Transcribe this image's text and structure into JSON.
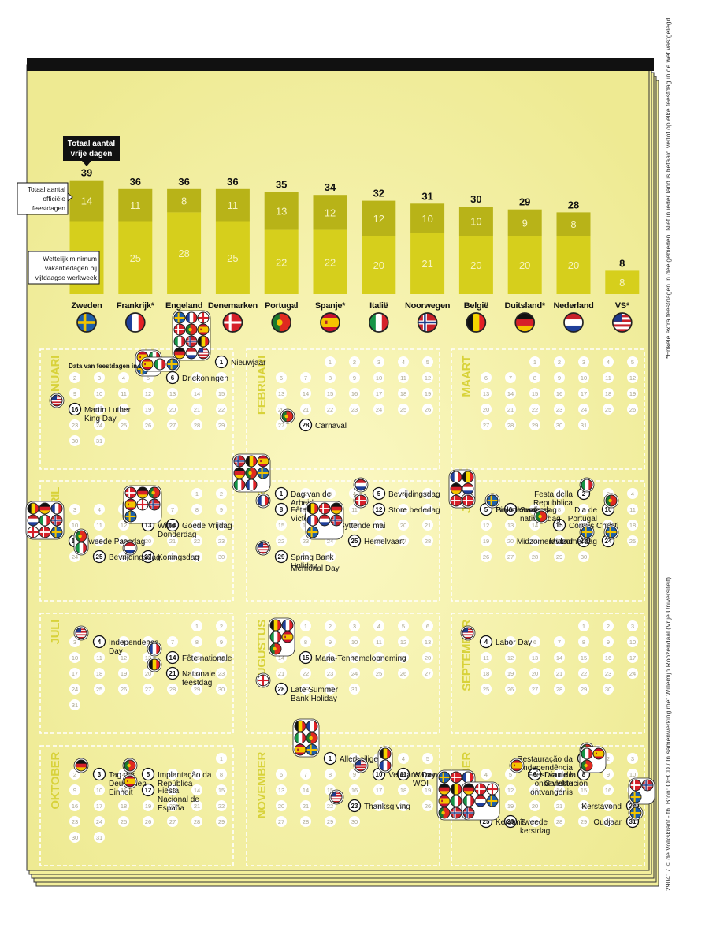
{
  "chart_data": {
    "type": "bar",
    "stacked": true,
    "categories": [
      "Zweden",
      "Frankrijk*",
      "Engeland",
      "Denemarken",
      "Portugal",
      "Spanje*",
      "Italië",
      "Noorwegen",
      "België",
      "Duitsland*",
      "Nederland",
      "VS*"
    ],
    "series": [
      {
        "values": [
          25,
          25,
          28,
          25,
          22,
          22,
          20,
          21,
          20,
          20,
          20,
          8
        ],
        "color": "#d6cf1c"
      },
      {
        "values": [
          14,
          11,
          8,
          11,
          13,
          12,
          12,
          10,
          10,
          9,
          8,
          0
        ],
        "color": "#b8b318"
      }
    ],
    "totals": [
      39,
      36,
      36,
      36,
      35,
      34,
      32,
      31,
      30,
      29,
      28,
      8
    ],
    "ylim": [
      0,
      40
    ],
    "annotations": {
      "total": "Totaal aantal vrije dagen",
      "holidays": "Totaal aantal officiële feestdagen",
      "minimum": "Wettelijk minimum vakantiedagen bij vijfdaagse werkweek"
    },
    "flag_icons": [
      "flag-se",
      "flag-fr",
      "flag-en",
      "flag-dk",
      "flag-pt",
      "flag-es",
      "flag-it",
      "flag-no",
      "flag-be",
      "flag-de",
      "flag-nl",
      "flag-us"
    ]
  },
  "calendar": {
    "subtitle": "Data van feestdagen in 2017",
    "subtitle_flags": [
      "flag-es",
      "flag-it",
      "flag-se"
    ],
    "months": [
      {
        "name": "JANUARI",
        "start": 6,
        "days": 31,
        "holidays": [
          {
            "day": 1,
            "label": "Nieuwjaar",
            "flags": [
              "flag-se",
              "flag-fr",
              "flag-en",
              "flag-dk",
              "flag-pt",
              "flag-es",
              "flag-it",
              "flag-no",
              "flag-be",
              "flag-de",
              "flag-nl",
              "flag-us"
            ]
          },
          {
            "day": 6,
            "label": "Driekoningen",
            "flags": [
              "flag-es",
              "flag-it",
              "flag-se"
            ]
          },
          {
            "day": 16,
            "label": "Martin Luther King Day",
            "flags": [
              "flag-us"
            ]
          }
        ]
      },
      {
        "name": "FEBRUARI",
        "start": 2,
        "days": 28,
        "holidays": [
          {
            "day": 28,
            "label": "Carnaval",
            "flags": [
              "flag-pt"
            ]
          }
        ]
      },
      {
        "name": "MAART",
        "start": 2,
        "days": 31,
        "holidays": []
      },
      {
        "name": "APRIL",
        "start": 5,
        "days": 30,
        "holidays": [
          {
            "day": 13,
            "label": "Witte Donderdag",
            "flags": [
              "flag-dk",
              "flag-no"
            ]
          },
          {
            "day": 14,
            "label": "Goede Vrijdag",
            "flags": [
              "flag-dk",
              "flag-de",
              "flag-pt",
              "flag-es",
              "flag-en",
              "flag-no",
              "flag-se"
            ]
          },
          {
            "day": 17,
            "label": "Tweede Paasdag",
            "flags": [
              "flag-be",
              "flag-de",
              "flag-fr",
              "flag-nl",
              "flag-it",
              "flag-no",
              "flag-en",
              "flag-dk",
              "flag-se"
            ]
          },
          {
            "day": 25,
            "label": "Bevrijdingsdag",
            "flags": [
              "flag-pt",
              "flag-it"
            ]
          },
          {
            "day": 27,
            "label": "Koningsdag",
            "flags": [
              "flag-nl"
            ]
          }
        ]
      },
      {
        "name": "MEI",
        "start": 0,
        "days": 31,
        "holidays": [
          {
            "day": 1,
            "label": "Dag van de Arbeid",
            "flags": [
              "flag-no",
              "flag-be",
              "flag-es",
              "flag-de",
              "flag-pt",
              "flag-se",
              "flag-it",
              "flag-fr"
            ]
          },
          {
            "day": 5,
            "label": "Bevrijdingsdag",
            "flags": [
              "flag-nl"
            ]
          },
          {
            "day": 8,
            "label": "Fête de la Victoire",
            "flags": [
              "flag-fr"
            ]
          },
          {
            "day": 12,
            "label": "Store bededag",
            "flags": [
              "flag-dk"
            ]
          },
          {
            "day": 17,
            "label": "Syttende mai",
            "flags": [
              "flag-no"
            ]
          },
          {
            "day": 25,
            "label": "Hemelvaart",
            "flags": [
              "flag-be",
              "flag-dk",
              "flag-de",
              "flag-fr",
              "flag-nl",
              "flag-no",
              "flag-se"
            ]
          },
          {
            "day": 29,
            "label": "Spring Bank Holiday",
            "flags": [
              "flag-en"
            ]
          },
          {
            "day": 29,
            "label": "Memorial Day",
            "flags": [
              "flag-us"
            ]
          }
        ]
      },
      {
        "name": "JUNI",
        "start": 3,
        "days": 30,
        "holidays": [
          {
            "day": 2,
            "label": "Festa della Repubblica",
            "flags": [
              "flag-it"
            ]
          },
          {
            "day": 5,
            "label": "Pinkstermaandag",
            "flags": [
              "flag-fr",
              "flag-be",
              "flag-de",
              "flag-nl",
              "flag-dk",
              "flag-no"
            ]
          },
          {
            "day": 6,
            "label": "Sveriges nationaldag",
            "flags": [
              "flag-se"
            ]
          },
          {
            "day": 5,
            "label": "Grundlovsdag",
            "flags": [
              "flag-dk"
            ]
          },
          {
            "day": 10,
            "label": "Dia de Portugal",
            "flags": [
              "flag-pt"
            ]
          },
          {
            "day": 15,
            "label": "Corpus Christi",
            "flags": [
              "flag-pt"
            ]
          },
          {
            "day": 23,
            "label": "Midzomeravond",
            "flags": [
              "flag-se"
            ]
          },
          {
            "day": 24,
            "label": "Midzomerdag",
            "flags": [
              "flag-se"
            ]
          }
        ]
      },
      {
        "name": "JULI",
        "start": 5,
        "days": 31,
        "holidays": [
          {
            "day": 4,
            "label": "Independence Day",
            "flags": [
              "flag-us"
            ]
          },
          {
            "day": 14,
            "label": "Fête nationale",
            "flags": [
              "flag-fr"
            ]
          },
          {
            "day": 21,
            "label": "Nationale feestdag",
            "flags": [
              "flag-be"
            ]
          }
        ]
      },
      {
        "name": "AUGUSTUS",
        "start": 1,
        "days": 31,
        "holidays": [
          {
            "day": 15,
            "label": "Maria-Tenhemelopneming",
            "flags": [
              "flag-be",
              "flag-fr",
              "flag-it",
              "flag-es",
              "flag-pt"
            ]
          },
          {
            "day": 28,
            "label": "Late Summer Bank Holiday",
            "flags": [
              "flag-en"
            ]
          }
        ]
      },
      {
        "name": "SEPTEMBER",
        "start": 4,
        "days": 30,
        "holidays": [
          {
            "day": 4,
            "label": "Labor Day",
            "flags": [
              "flag-us"
            ]
          }
        ]
      },
      {
        "name": "OKTOBER",
        "start": 6,
        "days": 31,
        "holidays": [
          {
            "day": 3,
            "label": "Tag der Deutschen Einheit",
            "flags": [
              "flag-de"
            ]
          },
          {
            "day": 5,
            "label": "Implantação da República",
            "flags": [
              "flag-pt"
            ]
          },
          {
            "day": 12,
            "label": "Fiesta Nacional de España",
            "flags": [
              "flag-es"
            ]
          }
        ]
      },
      {
        "name": "NOVEMBER",
        "start": 2,
        "days": 30,
        "holidays": [
          {
            "day": 1,
            "label": "Allerheiligen",
            "flags": [
              "flag-be",
              "flag-fr",
              "flag-it",
              "flag-pt",
              "flag-es",
              "flag-se"
            ]
          },
          {
            "day": 10,
            "label": "Veterans Day",
            "flags": [
              "flag-us"
            ]
          },
          {
            "day": 11,
            "label": "Wapenstilstand WOI",
            "flags": [
              "flag-be",
              "flag-fr"
            ]
          },
          {
            "day": 23,
            "label": "Thanksgiving",
            "flags": [
              "flag-us"
            ]
          }
        ]
      },
      {
        "name": "DECEMBER",
        "start": 4,
        "days": 31,
        "holidays": [
          {
            "day": 1,
            "label": "Restauração da Independência",
            "flags": [
              "flag-pt"
            ]
          },
          {
            "day": 6,
            "label": "Día de la Constitución",
            "flags": [
              "flag-es"
            ]
          },
          {
            "day": 8,
            "label": "Feest van de onbevlekte ontvangenis",
            "flags": [
              "flag-it",
              "flag-es",
              "flag-pt"
            ]
          },
          {
            "day": 24,
            "label": "Kerstavond",
            "flags": [
              "flag-dk",
              "flag-no",
              "flag-se"
            ]
          },
          {
            "day": 25,
            "label": "Kerstmis",
            "flags": [
              "flag-se",
              "flag-dk",
              "flag-fr",
              "flag-de",
              "flag-be",
              "flag-en",
              "flag-es",
              "flag-it",
              "flag-nl",
              "flag-pt",
              "flag-no",
              "flag-us"
            ]
          },
          {
            "day": 26,
            "label": "Tweede kerstdag",
            "flags": [
              "flag-de",
              "flag-dk",
              "flag-en",
              "flag-it",
              "flag-nl",
              "flag-se",
              "flag-no"
            ]
          },
          {
            "day": 31,
            "label": "Oudjaar",
            "flags": [
              "flag-se"
            ]
          }
        ]
      }
    ]
  },
  "footnote": "*Enkele extra feestdagen in deelgebieden. Niet in ieder land is betaald verlof op elke feestdag in de wet vastgelegd",
  "credit": "290417 © de Volkskrant - tb. Bron: OECD / In samenwerking met Willemijn Roozendaal (Vrije Universiteit)",
  "colors": {
    "paper": "#f5f2a6",
    "bar_light": "#d6cf1c",
    "bar_dark": "#b8b318",
    "ink": "#111111",
    "grid": "#e4df89"
  }
}
